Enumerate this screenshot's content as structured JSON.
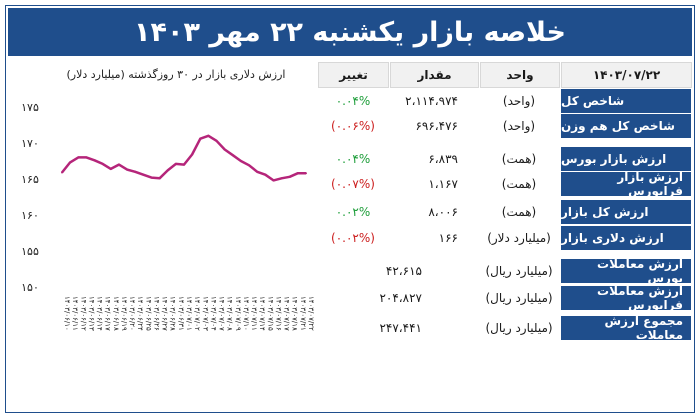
{
  "title": "خلاصه بازار   یکشنبه ۲۲ مهر ۱۴۰۳",
  "header": {
    "date": "۱۴۰۳/۰۷/۲۲",
    "unit_col": "واحد",
    "amount_col": "مقدار",
    "change_col": "تغییر",
    "chart_col": "ارزش دلاری بازار در ۳۰ روزگذشته (میلیارد دلار)"
  },
  "rows": [
    {
      "label": "شاخص کل",
      "unit": "(واحد)",
      "amount": "۲،۱۱۴،۹۷۴",
      "change": "۰.۰۴%",
      "dir": "up"
    },
    {
      "label": "شاخص کل هم وزن",
      "unit": "(واحد)",
      "amount": "۶۹۶،۴۷۶",
      "change": "(۰.۰۶%)",
      "dir": "down"
    },
    {
      "label": "ارزش بازار بورس",
      "unit": "(همت)",
      "amount": "۶،۸۳۹",
      "change": "۰.۰۴%",
      "dir": "up"
    },
    {
      "label": "ارزش بازار فرابورس",
      "unit": "(همت)",
      "amount": "۱،۱۶۷",
      "change": "(۰.۰۷%)",
      "dir": "down"
    },
    {
      "label": "ارزش کل بازار",
      "unit": "(همت)",
      "amount": "۸،۰۰۶",
      "change": "۰.۰۲%",
      "dir": "up"
    },
    {
      "label": "ارزش دلاری بازار",
      "unit": "(میلیارد دلار)",
      "amount": "۱۶۶",
      "change": "(۰.۰۲%)",
      "dir": "down"
    },
    {
      "label": "ارزش معاملات بورس",
      "unit": "(میلیارد ریال)",
      "amount": "۴۲،۶۱۵",
      "change": "",
      "dir": ""
    },
    {
      "label": "ارزش معاملات فرابورس",
      "unit": "(میلیارد ریال)",
      "amount": "۲۰۴،۸۲۷",
      "change": "",
      "dir": ""
    },
    {
      "label": "مجموع ارزش معاملات",
      "unit": "(میلیارد ریال)",
      "amount": "۲۴۷،۴۴۱",
      "change": "",
      "dir": ""
    }
  ],
  "colors": {
    "navy": "#1f4e8c",
    "line": "#b5257a",
    "up": "#1e9e3a",
    "down": "#cc1f1f"
  },
  "chart_data": {
    "type": "line",
    "title": "ارزش دلاری بازار در ۳۰ روزگذشته (میلیارد دلار)",
    "yticks": [
      "۱۷۵",
      "۱۷۰",
      "۱۶۵",
      "۱۶۰",
      "۱۵۵",
      "۱۵۰"
    ],
    "ylim": [
      150,
      175
    ],
    "x": [
      "۱۴۰۳/۰۶/۱۰",
      "۱۴۰۳/۰۶/۱۱",
      "۱۴۰۳/۰۶/۱۲",
      "۱۴۰۳/۰۶/۱۳",
      "۱۴۰۳/۰۶/۱۴",
      "۱۴۰۳/۰۶/۱۷",
      "۱۴۰۳/۰۶/۱۸",
      "۱۴۰۳/۰۶/۱۹",
      "۱۴۰۳/۰۶/۲۰",
      "۱۴۰۳/۰۶/۲۴",
      "۱۴۰۳/۰۶/۲۵",
      "۱۴۰۳/۰۶/۲۶",
      "۱۴۰۳/۰۶/۲۷",
      "۱۴۰۳/۰۶/۲۸",
      "۱۴۰۳/۰۶/۳۱",
      "۱۴۰۳/۰۷/۰۱",
      "۱۴۰۳/۰۷/۰۲",
      "۱۴۰۳/۰۷/۰۳",
      "۱۴۰۳/۰۷/۰۴",
      "۱۴۰۳/۰۷/۰۷",
      "۱۴۰۳/۰۷/۰۸",
      "۱۴۰۳/۰۷/۰۹",
      "۱۴۰۳/۰۷/۱۰",
      "۱۴۰۳/۰۷/۱۱",
      "۱۴۰۳/۰۷/۱۴",
      "۱۴۰۳/۰۷/۱۵",
      "۱۴۰۳/۰۷/۱۶",
      "۱۴۰۳/۰۷/۱۷",
      "۱۴۰۳/۰۷/۱۸",
      "۱۴۰۳/۰۷/۲۱",
      "۱۴۰۳/۰۷/۲۲"
    ],
    "values": [
      165.9,
      167.3,
      168.0,
      168.0,
      167.6,
      167.1,
      166.4,
      167.0,
      166.3,
      166.0,
      165.6,
      165.2,
      165.1,
      166.2,
      167.1,
      167.0,
      168.4,
      170.6,
      171.0,
      170.3,
      169.1,
      168.3,
      167.5,
      166.9,
      166.0,
      165.6,
      164.8,
      165.1,
      165.3,
      165.8,
      165.8
    ],
    "grid": false
  }
}
